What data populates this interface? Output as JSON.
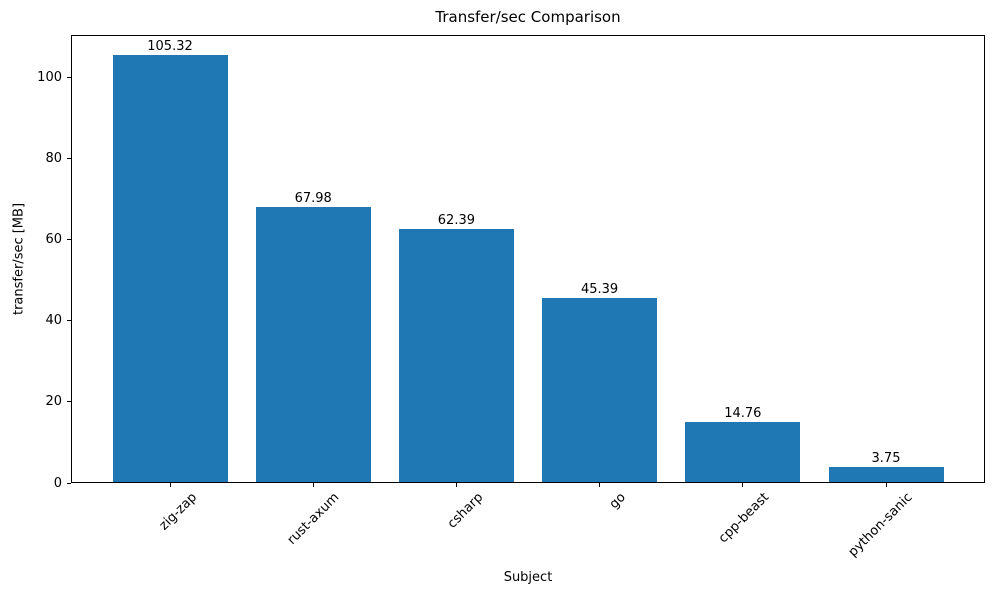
{
  "chart_data": {
    "type": "bar",
    "title": "Transfer/sec Comparison",
    "xlabel": "Subject",
    "ylabel": "transfer/sec [MB]",
    "categories": [
      "zig-zap",
      "rust-axum",
      "csharp",
      "go",
      "cpp-beast",
      "python-sanic"
    ],
    "values": [
      105.32,
      67.98,
      62.39,
      45.39,
      14.76,
      3.75
    ],
    "value_labels": [
      "105.32",
      "67.98",
      "62.39",
      "45.39",
      "14.76",
      "3.75"
    ],
    "ylim": [
      0,
      110.6
    ],
    "yticks": [
      0,
      20,
      40,
      60,
      80,
      100
    ],
    "x_tick_rotation_deg": 45,
    "grid": false,
    "legend_position": "none",
    "bar_color": "#1f77b4",
    "axis_color": "#000000",
    "text_color": "#000000",
    "background_color": "#ffffff"
  }
}
